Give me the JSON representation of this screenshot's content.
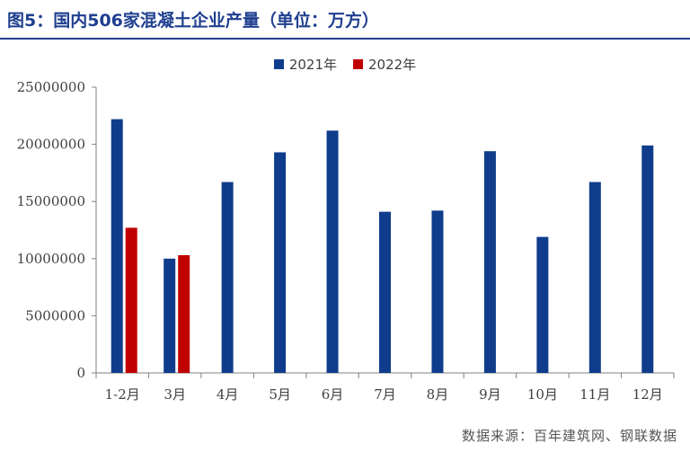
{
  "title": "图5：国内506家混凝土企业产量（单位：万方）",
  "source": "数据来源：百年建筑网、钢联数据",
  "chart_data": {
    "type": "bar",
    "categories": [
      "1-2月",
      "3月",
      "4月",
      "5月",
      "6月",
      "7月",
      "8月",
      "9月",
      "10月",
      "11月",
      "12月"
    ],
    "series": [
      {
        "name": "2021年",
        "color": "#0f3d8c",
        "values": [
          22200000,
          10000000,
          16700000,
          19300000,
          21200000,
          14100000,
          14200000,
          19400000,
          11900000,
          16700000,
          19900000
        ]
      },
      {
        "name": "2022年",
        "color": "#c00000",
        "values": [
          12700000,
          10300000,
          null,
          null,
          null,
          null,
          null,
          null,
          null,
          null,
          null
        ]
      }
    ],
    "ylim": [
      0,
      25000000
    ],
    "yticks": [
      0,
      5000000,
      10000000,
      15000000,
      20000000,
      25000000
    ],
    "ytick_labels": [
      "0",
      "5000000",
      "10000000",
      "15000000",
      "20000000",
      "25000000"
    ],
    "grid": false,
    "legend_position": "top-center"
  }
}
